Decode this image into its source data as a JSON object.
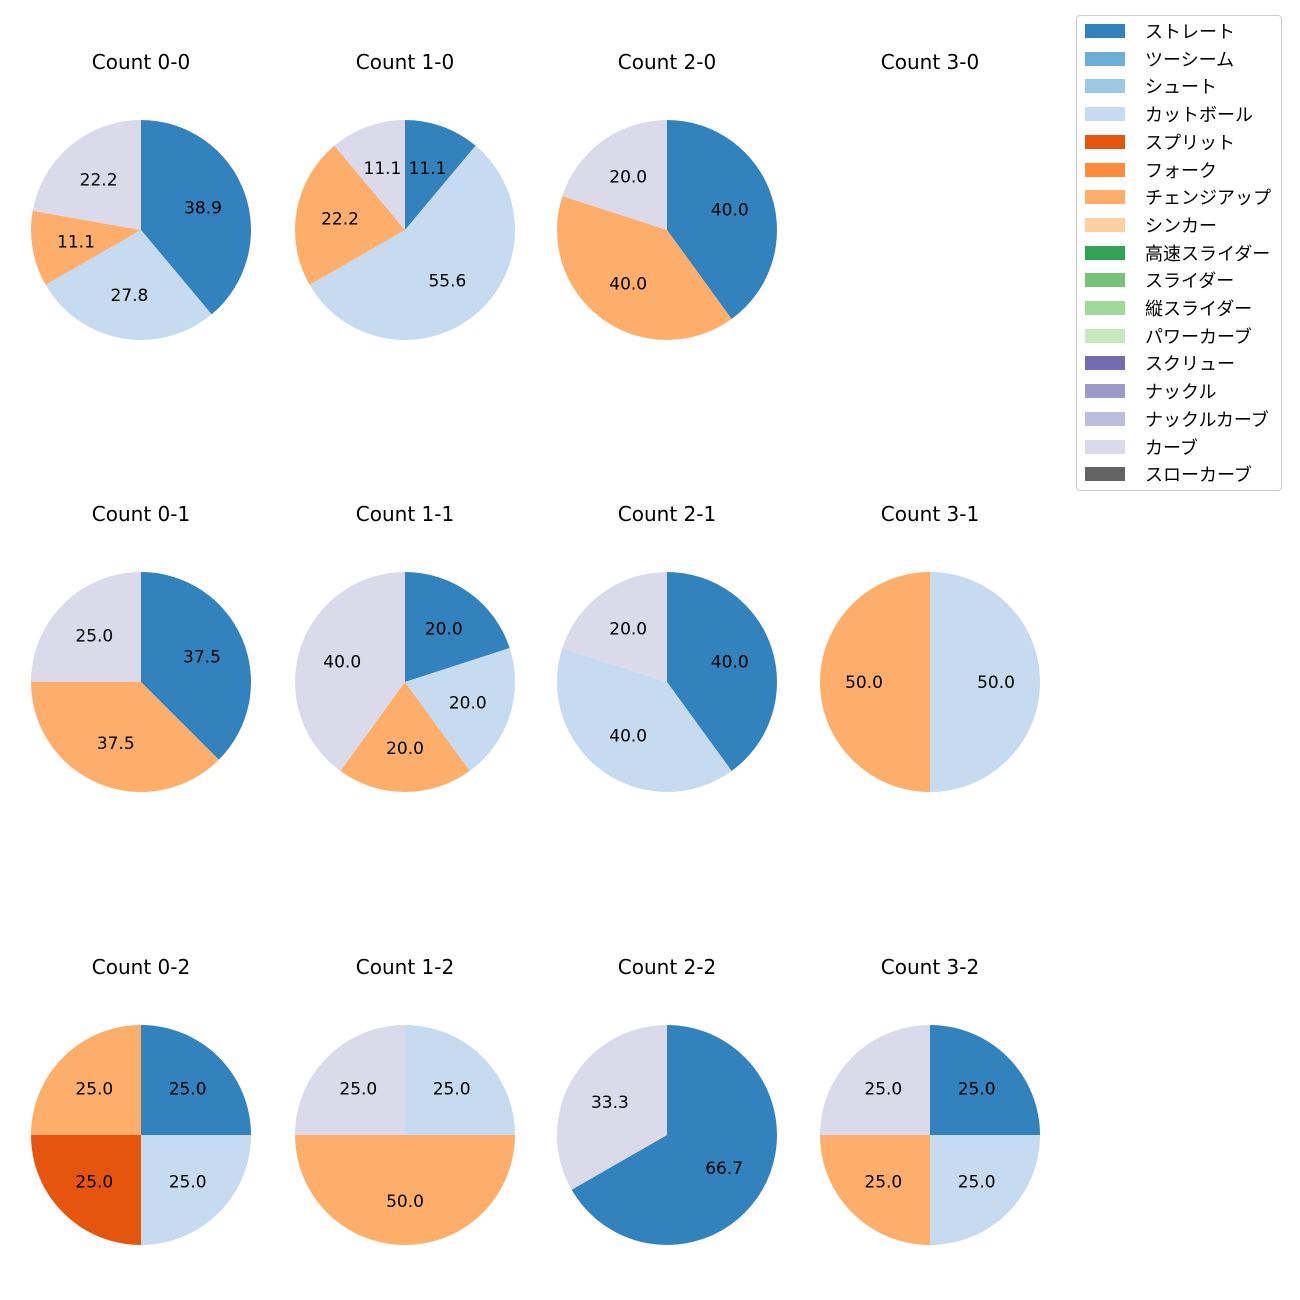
{
  "colors": {
    "ストレート": "#3182bd",
    "ツーシーム": "#6baed6",
    "シュート": "#9ecae1",
    "カットボール": "#c6dbef",
    "スプリット": "#e6550d",
    "フォーク": "#fd8d3c",
    "チェンジアップ": "#fdae6b",
    "シンカー": "#fdd0a2",
    "高速スライダー": "#31a354",
    "スライダー": "#74c476",
    "縦スライダー": "#a1d99b",
    "パワーカーブ": "#c7e9c0",
    "スクリュー": "#756bb1",
    "ナックル": "#9e9ac8",
    "ナックルカーブ": "#bcbddc",
    "カーブ": "#dadaeb",
    "スローカーブ": "#636363"
  },
  "legend": [
    "ストレート",
    "ツーシーム",
    "シュート",
    "カットボール",
    "スプリット",
    "フォーク",
    "チェンジアップ",
    "シンカー",
    "高速スライダー",
    "スライダー",
    "縦スライダー",
    "パワーカーブ",
    "スクリュー",
    "ナックル",
    "ナックルカーブ",
    "カーブ",
    "スローカーブ"
  ],
  "chart_data": [
    {
      "type": "pie",
      "title": "Count 0-0",
      "slices": [
        {
          "label": "ストレート",
          "value": 38.9
        },
        {
          "label": "カットボール",
          "value": 27.8
        },
        {
          "label": "チェンジアップ",
          "value": 11.1
        },
        {
          "label": "カーブ",
          "value": 22.2
        }
      ]
    },
    {
      "type": "pie",
      "title": "Count 1-0",
      "slices": [
        {
          "label": "ストレート",
          "value": 11.1
        },
        {
          "label": "カットボール",
          "value": 55.6
        },
        {
          "label": "チェンジアップ",
          "value": 22.2
        },
        {
          "label": "カーブ",
          "value": 11.1
        }
      ]
    },
    {
      "type": "pie",
      "title": "Count 2-0",
      "slices": [
        {
          "label": "ストレート",
          "value": 40.0
        },
        {
          "label": "チェンジアップ",
          "value": 40.0
        },
        {
          "label": "カーブ",
          "value": 20.0
        }
      ]
    },
    {
      "type": "pie",
      "title": "Count 3-0",
      "slices": []
    },
    {
      "type": "pie",
      "title": "Count 0-1",
      "slices": [
        {
          "label": "ストレート",
          "value": 37.5
        },
        {
          "label": "チェンジアップ",
          "value": 37.5
        },
        {
          "label": "カーブ",
          "value": 25.0
        }
      ]
    },
    {
      "type": "pie",
      "title": "Count 1-1",
      "slices": [
        {
          "label": "ストレート",
          "value": 20.0
        },
        {
          "label": "カットボール",
          "value": 20.0
        },
        {
          "label": "チェンジアップ",
          "value": 20.0
        },
        {
          "label": "カーブ",
          "value": 40.0
        }
      ]
    },
    {
      "type": "pie",
      "title": "Count 2-1",
      "slices": [
        {
          "label": "ストレート",
          "value": 40.0
        },
        {
          "label": "カットボール",
          "value": 40.0
        },
        {
          "label": "カーブ",
          "value": 20.0
        }
      ]
    },
    {
      "type": "pie",
      "title": "Count 3-1",
      "slices": [
        {
          "label": "カットボール",
          "value": 50.0
        },
        {
          "label": "チェンジアップ",
          "value": 50.0
        }
      ]
    },
    {
      "type": "pie",
      "title": "Count 0-2",
      "slices": [
        {
          "label": "ストレート",
          "value": 25.0
        },
        {
          "label": "カットボール",
          "value": 25.0
        },
        {
          "label": "スプリット",
          "value": 25.0
        },
        {
          "label": "チェンジアップ",
          "value": 25.0
        }
      ]
    },
    {
      "type": "pie",
      "title": "Count 1-2",
      "slices": [
        {
          "label": "カットボール",
          "value": 25.0
        },
        {
          "label": "チェンジアップ",
          "value": 50.0
        },
        {
          "label": "カーブ",
          "value": 25.0
        }
      ]
    },
    {
      "type": "pie",
      "title": "Count 2-2",
      "slices": [
        {
          "label": "ストレート",
          "value": 66.7
        },
        {
          "label": "カーブ",
          "value": 33.3
        }
      ]
    },
    {
      "type": "pie",
      "title": "Count 3-2",
      "slices": [
        {
          "label": "ストレート",
          "value": 25.0
        },
        {
          "label": "カットボール",
          "value": 25.0
        },
        {
          "label": "チェンジアップ",
          "value": 25.0
        },
        {
          "label": "カーブ",
          "value": 25.0
        }
      ]
    }
  ]
}
